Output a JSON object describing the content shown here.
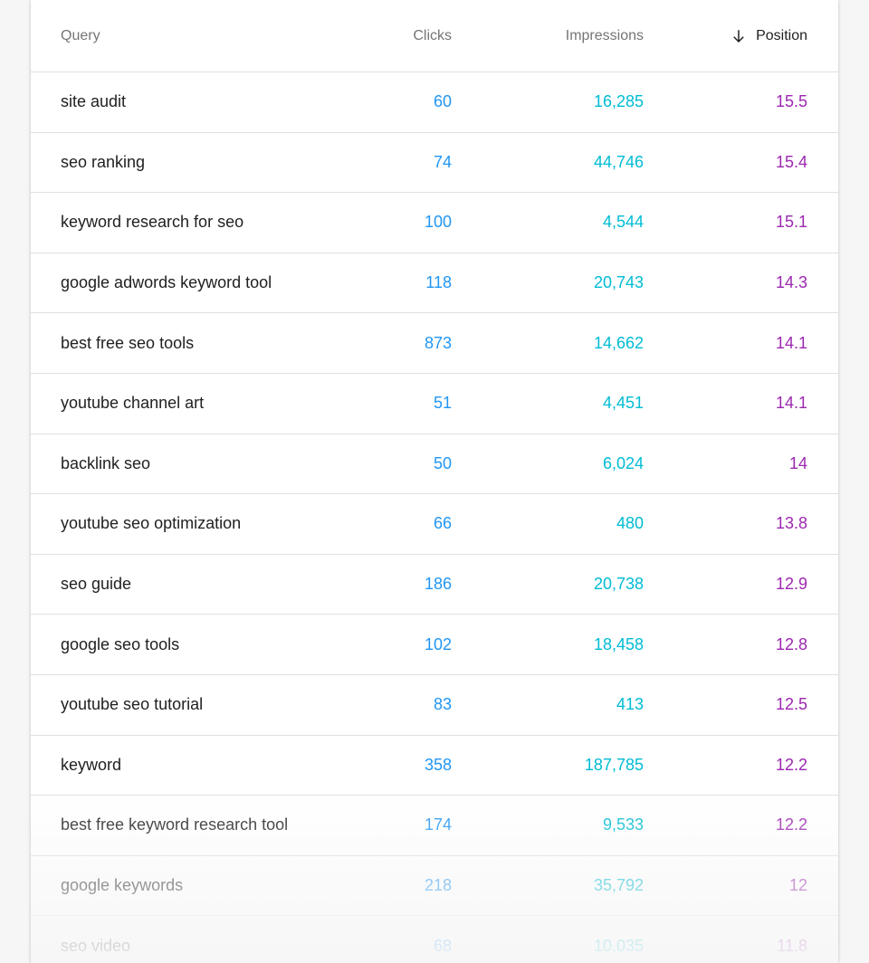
{
  "colors": {
    "clicks": "#2196f3",
    "impressions": "#00bcd4",
    "position": "#9c27b0",
    "query_text": "#212121",
    "header_text": "#757575"
  },
  "table": {
    "headers": {
      "query": "Query",
      "clicks": "Clicks",
      "impressions": "Impressions",
      "position": "Position",
      "sort_icon": "arrow-down-icon"
    },
    "rows": [
      {
        "query": "site audit",
        "clicks": "60",
        "impressions": "16,285",
        "position": "15.5"
      },
      {
        "query": "seo ranking",
        "clicks": "74",
        "impressions": "44,746",
        "position": "15.4"
      },
      {
        "query": "keyword research for seo",
        "clicks": "100",
        "impressions": "4,544",
        "position": "15.1"
      },
      {
        "query": "google adwords keyword tool",
        "clicks": "118",
        "impressions": "20,743",
        "position": "14.3"
      },
      {
        "query": "best free seo tools",
        "clicks": "873",
        "impressions": "14,662",
        "position": "14.1"
      },
      {
        "query": "youtube channel art",
        "clicks": "51",
        "impressions": "4,451",
        "position": "14.1"
      },
      {
        "query": "backlink seo",
        "clicks": "50",
        "impressions": "6,024",
        "position": "14"
      },
      {
        "query": "youtube seo optimization",
        "clicks": "66",
        "impressions": "480",
        "position": "13.8"
      },
      {
        "query": "seo guide",
        "clicks": "186",
        "impressions": "20,738",
        "position": "12.9"
      },
      {
        "query": "google seo tools",
        "clicks": "102",
        "impressions": "18,458",
        "position": "12.8"
      },
      {
        "query": "youtube seo tutorial",
        "clicks": "83",
        "impressions": "413",
        "position": "12.5"
      },
      {
        "query": "keyword",
        "clicks": "358",
        "impressions": "187,785",
        "position": "12.2"
      },
      {
        "query": "best free keyword research tool",
        "clicks": "174",
        "impressions": "9,533",
        "position": "12.2"
      },
      {
        "query": "google keywords",
        "clicks": "218",
        "impressions": "35,792",
        "position": "12"
      },
      {
        "query": "seo video",
        "clicks": "68",
        "impressions": "10,035",
        "position": "11.8"
      }
    ]
  }
}
